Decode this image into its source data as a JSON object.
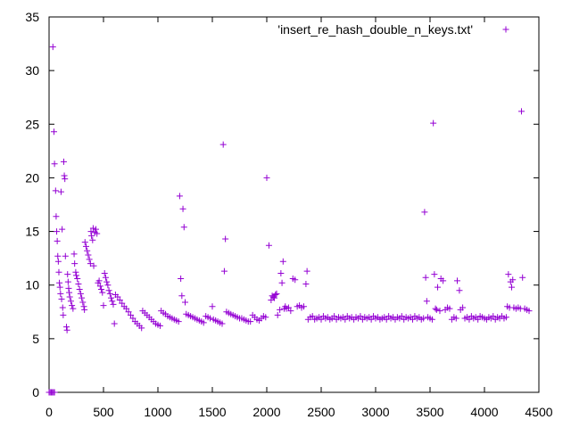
{
  "chart_data": {
    "type": "scatter",
    "title": "",
    "xlabel": "",
    "ylabel": "",
    "xlim": [
      0,
      4500
    ],
    "ylim": [
      0,
      35
    ],
    "x_ticks": [
      0,
      500,
      1000,
      1500,
      2000,
      2500,
      3000,
      3500,
      4000,
      4500
    ],
    "y_ticks": [
      0,
      5,
      10,
      15,
      20,
      25,
      30,
      35
    ],
    "grid": false,
    "legend_position": "top-right",
    "marker": "+",
    "series": [
      {
        "name": "'insert_re_hash_double_n_keys.txt'",
        "color": "#9400d3",
        "points": [
          [
            0,
            0
          ],
          [
            10,
            0
          ],
          [
            20,
            0
          ],
          [
            30,
            0
          ],
          [
            40,
            0
          ],
          [
            50,
            0
          ],
          [
            35,
            32.2
          ],
          [
            45,
            24.3
          ],
          [
            50,
            21.3
          ],
          [
            60,
            18.8
          ],
          [
            65,
            16.4
          ],
          [
            70,
            15.0
          ],
          [
            75,
            14.1
          ],
          [
            80,
            12.7
          ],
          [
            85,
            12.2
          ],
          [
            90,
            11.2
          ],
          [
            95,
            10.2
          ],
          [
            100,
            9.8
          ],
          [
            105,
            9.2
          ],
          [
            110,
            18.7
          ],
          [
            115,
            8.7
          ],
          [
            120,
            15.2
          ],
          [
            125,
            7.9
          ],
          [
            130,
            7.2
          ],
          [
            135,
            21.5
          ],
          [
            140,
            20.2
          ],
          [
            145,
            19.9
          ],
          [
            150,
            12.7
          ],
          [
            160,
            6.1
          ],
          [
            165,
            5.8
          ],
          [
            170,
            11.0
          ],
          [
            175,
            10.3
          ],
          [
            180,
            9.7
          ],
          [
            185,
            9.3
          ],
          [
            190,
            8.9
          ],
          [
            200,
            8.5
          ],
          [
            210,
            8.1
          ],
          [
            220,
            7.8
          ],
          [
            230,
            12.9
          ],
          [
            235,
            12.0
          ],
          [
            245,
            11.2
          ],
          [
            250,
            10.9
          ],
          [
            260,
            10.6
          ],
          [
            270,
            10.1
          ],
          [
            280,
            9.6
          ],
          [
            290,
            9.2
          ],
          [
            300,
            8.8
          ],
          [
            310,
            8.4
          ],
          [
            320,
            8.0
          ],
          [
            325,
            7.7
          ],
          [
            330,
            14.0
          ],
          [
            340,
            13.6
          ],
          [
            350,
            13.2
          ],
          [
            360,
            12.8
          ],
          [
            370,
            12.4
          ],
          [
            380,
            12.0
          ],
          [
            385,
            15.0
          ],
          [
            390,
            14.6
          ],
          [
            400,
            14.2
          ],
          [
            405,
            15.3
          ],
          [
            410,
            11.8
          ],
          [
            420,
            14.9
          ],
          [
            430,
            15.2
          ],
          [
            440,
            14.8
          ],
          [
            450,
            10.2
          ],
          [
            460,
            10.4
          ],
          [
            470,
            9.9
          ],
          [
            480,
            9.6
          ],
          [
            490,
            9.3
          ],
          [
            500,
            8.1
          ],
          [
            510,
            11.1
          ],
          [
            520,
            10.7
          ],
          [
            530,
            10.3
          ],
          [
            540,
            10.0
          ],
          [
            550,
            9.5
          ],
          [
            560,
            9.2
          ],
          [
            570,
            8.8
          ],
          [
            580,
            8.5
          ],
          [
            590,
            8.2
          ],
          [
            600,
            6.4
          ],
          [
            610,
            9.1
          ],
          [
            630,
            8.9
          ],
          [
            650,
            8.6
          ],
          [
            670,
            8.3
          ],
          [
            690,
            8.0
          ],
          [
            710,
            7.8
          ],
          [
            730,
            7.5
          ],
          [
            750,
            7.2
          ],
          [
            770,
            6.9
          ],
          [
            790,
            6.6
          ],
          [
            810,
            6.4
          ],
          [
            830,
            6.2
          ],
          [
            850,
            6.0
          ],
          [
            860,
            7.6
          ],
          [
            880,
            7.4
          ],
          [
            900,
            7.2
          ],
          [
            920,
            7.0
          ],
          [
            940,
            6.8
          ],
          [
            960,
            6.6
          ],
          [
            980,
            6.4
          ],
          [
            1000,
            6.3
          ],
          [
            1020,
            6.2
          ],
          [
            1030,
            7.6
          ],
          [
            1050,
            7.4
          ],
          [
            1070,
            7.3
          ],
          [
            1090,
            7.1
          ],
          [
            1110,
            7.0
          ],
          [
            1130,
            6.9
          ],
          [
            1150,
            6.8
          ],
          [
            1170,
            6.7
          ],
          [
            1190,
            6.6
          ],
          [
            1200,
            18.3
          ],
          [
            1210,
            10.6
          ],
          [
            1220,
            9.0
          ],
          [
            1230,
            17.1
          ],
          [
            1240,
            15.4
          ],
          [
            1250,
            8.4
          ],
          [
            1260,
            7.3
          ],
          [
            1280,
            7.2
          ],
          [
            1300,
            7.1
          ],
          [
            1320,
            7.0
          ],
          [
            1340,
            6.9
          ],
          [
            1360,
            6.8
          ],
          [
            1380,
            6.7
          ],
          [
            1400,
            6.6
          ],
          [
            1420,
            6.5
          ],
          [
            1440,
            7.1
          ],
          [
            1460,
            7.0
          ],
          [
            1480,
            6.9
          ],
          [
            1500,
            8.0
          ],
          [
            1510,
            6.8
          ],
          [
            1530,
            6.7
          ],
          [
            1550,
            6.6
          ],
          [
            1570,
            6.5
          ],
          [
            1590,
            6.4
          ],
          [
            1600,
            23.1
          ],
          [
            1610,
            11.3
          ],
          [
            1620,
            14.3
          ],
          [
            1630,
            7.5
          ],
          [
            1650,
            7.4
          ],
          [
            1670,
            7.3
          ],
          [
            1690,
            7.2
          ],
          [
            1710,
            7.1
          ],
          [
            1730,
            7.0
          ],
          [
            1750,
            6.9
          ],
          [
            1770,
            6.9
          ],
          [
            1790,
            6.8
          ],
          [
            1810,
            6.7
          ],
          [
            1830,
            6.6
          ],
          [
            1850,
            6.6
          ],
          [
            1870,
            7.2
          ],
          [
            1890,
            7.0
          ],
          [
            1910,
            6.8
          ],
          [
            1930,
            6.7
          ],
          [
            1950,
            6.9
          ],
          [
            1970,
            7.1
          ],
          [
            1990,
            7.0
          ],
          [
            2000,
            20.0
          ],
          [
            2020,
            13.7
          ],
          [
            2040,
            8.6
          ],
          [
            2050,
            9.0
          ],
          [
            2060,
            8.9
          ],
          [
            2070,
            8.8
          ],
          [
            2080,
            9.1
          ],
          [
            2090,
            9.2
          ],
          [
            2100,
            7.2
          ],
          [
            2120,
            7.7
          ],
          [
            2130,
            11.1
          ],
          [
            2140,
            10.2
          ],
          [
            2150,
            12.2
          ],
          [
            2160,
            7.8
          ],
          [
            2170,
            8.0
          ],
          [
            2180,
            7.8
          ],
          [
            2200,
            7.9
          ],
          [
            2220,
            7.6
          ],
          [
            2240,
            10.6
          ],
          [
            2260,
            10.5
          ],
          [
            2280,
            8.0
          ],
          [
            2300,
            8.1
          ],
          [
            2320,
            7.9
          ],
          [
            2340,
            8.0
          ],
          [
            2360,
            10.1
          ],
          [
            2370,
            11.3
          ],
          [
            2380,
            6.8
          ],
          [
            2400,
            7.0
          ],
          [
            2420,
            7.1
          ],
          [
            2440,
            6.8
          ],
          [
            2460,
            6.9
          ],
          [
            2480,
            7.0
          ],
          [
            2500,
            6.8
          ],
          [
            2520,
            7.1
          ],
          [
            2540,
            6.9
          ],
          [
            2560,
            7.0
          ],
          [
            2580,
            6.8
          ],
          [
            2600,
            6.9
          ],
          [
            2620,
            7.1
          ],
          [
            2640,
            6.8
          ],
          [
            2660,
            7.0
          ],
          [
            2680,
            6.9
          ],
          [
            2700,
            7.0
          ],
          [
            2720,
            6.8
          ],
          [
            2740,
            7.1
          ],
          [
            2760,
            6.9
          ],
          [
            2780,
            7.0
          ],
          [
            2800,
            6.8
          ],
          [
            2820,
            7.0
          ],
          [
            2840,
            6.9
          ],
          [
            2860,
            7.1
          ],
          [
            2880,
            6.8
          ],
          [
            2900,
            7.0
          ],
          [
            2920,
            6.9
          ],
          [
            2940,
            7.0
          ],
          [
            2960,
            6.8
          ],
          [
            2980,
            7.1
          ],
          [
            3000,
            6.9
          ],
          [
            3020,
            7.0
          ],
          [
            3040,
            6.8
          ],
          [
            3060,
            6.9
          ],
          [
            3080,
            7.0
          ],
          [
            3100,
            6.8
          ],
          [
            3120,
            7.1
          ],
          [
            3140,
            6.9
          ],
          [
            3160,
            7.0
          ],
          [
            3180,
            6.8
          ],
          [
            3200,
            7.0
          ],
          [
            3220,
            6.9
          ],
          [
            3240,
            7.1
          ],
          [
            3260,
            6.8
          ],
          [
            3280,
            7.0
          ],
          [
            3300,
            6.9
          ],
          [
            3320,
            7.0
          ],
          [
            3340,
            6.8
          ],
          [
            3360,
            7.1
          ],
          [
            3380,
            6.9
          ],
          [
            3400,
            7.0
          ],
          [
            3420,
            6.8
          ],
          [
            3440,
            6.9
          ],
          [
            3450,
            16.8
          ],
          [
            3460,
            10.7
          ],
          [
            3470,
            8.5
          ],
          [
            3480,
            7.0
          ],
          [
            3500,
            6.9
          ],
          [
            3520,
            6.8
          ],
          [
            3530,
            25.1
          ],
          [
            3540,
            11.0
          ],
          [
            3550,
            7.8
          ],
          [
            3560,
            7.7
          ],
          [
            3570,
            9.8
          ],
          [
            3590,
            7.6
          ],
          [
            3600,
            10.6
          ],
          [
            3620,
            10.4
          ],
          [
            3640,
            7.7
          ],
          [
            3660,
            7.9
          ],
          [
            3680,
            7.8
          ],
          [
            3700,
            6.8
          ],
          [
            3720,
            7.0
          ],
          [
            3740,
            6.9
          ],
          [
            3750,
            10.4
          ],
          [
            3770,
            9.5
          ],
          [
            3780,
            7.7
          ],
          [
            3800,
            7.9
          ],
          [
            3820,
            6.9
          ],
          [
            3840,
            7.0
          ],
          [
            3860,
            6.8
          ],
          [
            3880,
            7.1
          ],
          [
            3900,
            6.9
          ],
          [
            3920,
            7.0
          ],
          [
            3940,
            6.8
          ],
          [
            3960,
            7.1
          ],
          [
            3980,
            7.0
          ],
          [
            4000,
            6.9
          ],
          [
            4020,
            6.8
          ],
          [
            4040,
            7.0
          ],
          [
            4060,
            6.9
          ],
          [
            4080,
            7.1
          ],
          [
            4100,
            6.8
          ],
          [
            4120,
            7.0
          ],
          [
            4140,
            6.9
          ],
          [
            4160,
            7.1
          ],
          [
            4180,
            6.9
          ],
          [
            4200,
            7.0
          ],
          [
            4210,
            8.0
          ],
          [
            4220,
            11.0
          ],
          [
            4230,
            7.9
          ],
          [
            4240,
            10.3
          ],
          [
            4250,
            9.8
          ],
          [
            4260,
            10.5
          ],
          [
            4270,
            7.9
          ],
          [
            4290,
            7.8
          ],
          [
            4310,
            7.9
          ],
          [
            4330,
            7.8
          ],
          [
            4340,
            26.2
          ],
          [
            4350,
            10.7
          ],
          [
            4370,
            7.8
          ],
          [
            4390,
            7.7
          ],
          [
            4410,
            7.6
          ]
        ]
      }
    ]
  }
}
